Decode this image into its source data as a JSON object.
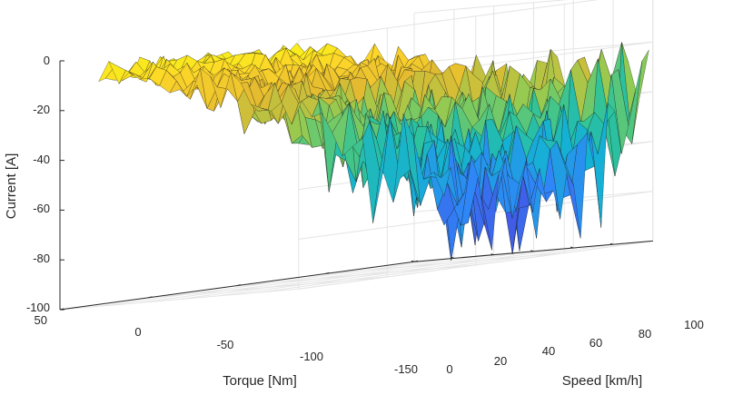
{
  "chart_data": {
    "type": "surface",
    "colormap": "parula",
    "colormap_stops": [
      "#3e26a8",
      "#4a48e0",
      "#2e87f7",
      "#15b1d4",
      "#2dc39a",
      "#8fcb54",
      "#e3ba30",
      "#fcd429",
      "#f9fb15"
    ],
    "axes": {
      "x": {
        "label": "Torque [Nm]",
        "ticks": [
          "50",
          "0",
          "-50",
          "-100",
          "-150"
        ],
        "range": [
          50,
          -150
        ]
      },
      "y": {
        "label": "Speed [km/h]",
        "ticks": [
          "0",
          "20",
          "40",
          "60",
          "80",
          "100"
        ],
        "range": [
          0,
          120
        ]
      },
      "z": {
        "label": "Current [A]",
        "ticks": [
          "0",
          "-20",
          "-40",
          "-60",
          "-80",
          "-100"
        ],
        "range": [
          -100,
          0
        ]
      }
    },
    "grid": true,
    "surface_summary": {
      "description": "Current decreases with more negative torque; near-zero current at low torque magnitude, down to about -100 A at high negative torque and mid speeds",
      "approx_samples": [
        {
          "torque": 40,
          "speed": 110,
          "current": -5
        },
        {
          "torque": 0,
          "speed": 100,
          "current": -15
        },
        {
          "torque": -50,
          "speed": 80,
          "current": -35
        },
        {
          "torque": -100,
          "speed": 60,
          "current": -60
        },
        {
          "torque": -150,
          "speed": 40,
          "current": -95
        },
        {
          "torque": -150,
          "speed": 100,
          "current": -25
        }
      ]
    }
  }
}
